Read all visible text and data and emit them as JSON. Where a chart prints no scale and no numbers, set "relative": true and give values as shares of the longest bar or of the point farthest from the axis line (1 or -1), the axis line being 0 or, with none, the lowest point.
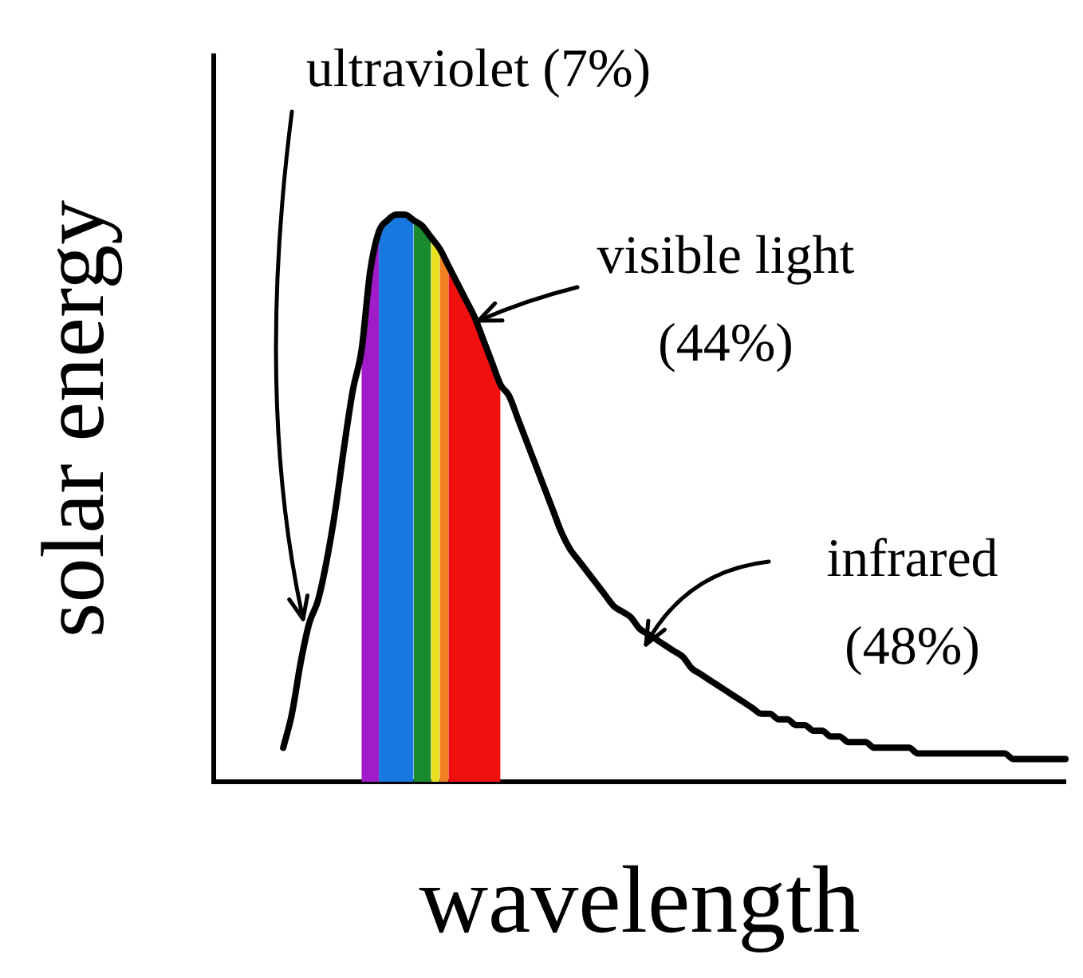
{
  "chart_data": {
    "type": "line",
    "relative": true,
    "xlabel": "wavelength",
    "ylabel": "solar energy",
    "marker": "none",
    "annotations": [
      "ultraviolet (7%)",
      "visible light (44%)",
      "infrared (48%)"
    ],
    "categories": [
      null,
      null,
      null,
      null,
      null,
      null,
      null,
      null,
      null,
      null,
      null,
      null,
      null,
      null,
      null,
      null,
      null,
      null,
      null,
      null,
      null,
      null,
      null,
      null,
      null,
      null,
      null,
      null,
      null,
      null,
      null,
      null,
      null,
      null,
      null,
      null,
      null,
      null,
      null,
      null,
      null,
      null,
      null,
      null,
      null,
      null,
      null,
      null,
      null,
      null,
      null,
      null,
      null,
      null,
      null,
      null,
      null,
      null,
      null,
      null,
      null,
      null,
      null,
      null,
      null,
      null,
      null,
      null,
      null,
      null,
      null,
      null,
      null,
      null,
      null,
      null,
      null,
      null,
      null,
      null,
      null,
      null,
      null,
      null,
      null,
      null,
      null,
      null,
      null,
      null,
      null,
      null,
      null,
      null,
      null,
      null,
      null,
      null,
      null
    ],
    "series": [
      {
        "type": "line",
        "color": "#000000",
        "values": [
          null,
          null,
          null,
          null,
          null,
          null,
          null,
          null,
          0.06,
          0.12,
          0.21,
          0.28,
          0.32,
          0.39,
          0.48,
          0.59,
          0.69,
          0.76,
          0.9,
          0.97,
          0.99,
          1,
          1,
          0.99,
          0.98,
          0.96,
          0.94,
          0.91,
          0.88,
          0.85,
          0.82,
          0.78,
          0.74,
          0.7,
          0.68,
          0.64,
          0.6,
          0.56,
          0.52,
          0.48,
          0.44,
          0.41,
          0.39,
          0.37,
          0.35,
          0.33,
          0.31,
          0.3,
          0.29,
          0.27,
          0.26,
          0.25,
          0.24,
          0.23,
          0.22,
          0.2,
          0.19,
          0.18,
          0.17,
          0.16,
          0.15,
          0.14,
          0.13,
          0.12,
          0.12,
          0.11,
          0.11,
          0.1,
          0.1,
          0.09,
          0.09,
          0.08,
          0.08,
          0.07,
          0.07,
          0.07,
          0.06,
          0.06,
          0.06,
          0.06,
          0.06,
          0.05,
          0.05,
          0.05,
          0.05,
          0.05,
          0.05,
          0.05,
          0.05,
          0.05,
          0.05,
          0.05,
          0.04,
          0.04,
          0.04,
          0.04,
          0.04,
          0.04,
          0.04
        ]
      },
      {
        "type": "area",
        "color": "#a01cc8",
        "values": [
          null,
          null,
          null,
          null,
          null,
          null,
          null,
          null,
          null,
          null,
          null,
          null,
          null,
          null,
          null,
          null,
          null,
          0.76,
          0.9,
          0.97,
          null,
          null,
          null,
          null,
          null,
          null,
          null,
          null,
          null,
          null,
          null,
          null,
          null,
          null,
          null,
          null,
          null,
          null,
          null,
          null,
          null,
          null,
          null,
          null,
          null,
          null,
          null,
          null,
          null,
          null,
          null,
          null,
          null,
          null,
          null,
          null,
          null,
          null,
          null,
          null,
          null,
          null,
          null,
          null,
          null,
          null,
          null,
          null,
          null,
          null,
          null,
          null,
          null,
          null,
          null,
          null,
          null,
          null,
          null,
          null,
          null,
          null,
          null,
          null,
          null,
          null,
          null,
          null,
          null,
          null,
          null,
          null,
          null,
          null,
          null,
          null,
          null,
          null,
          null
        ]
      },
      {
        "type": "area",
        "color": "#1878e0",
        "values": [
          null,
          null,
          null,
          null,
          null,
          null,
          null,
          null,
          null,
          null,
          null,
          null,
          null,
          null,
          null,
          null,
          null,
          null,
          null,
          0.97,
          0.99,
          1,
          1,
          0.99,
          null,
          null,
          null,
          null,
          null,
          null,
          null,
          null,
          null,
          null,
          null,
          null,
          null,
          null,
          null,
          null,
          null,
          null,
          null,
          null,
          null,
          null,
          null,
          null,
          null,
          null,
          null,
          null,
          null,
          null,
          null,
          null,
          null,
          null,
          null,
          null,
          null,
          null,
          null,
          null,
          null,
          null,
          null,
          null,
          null,
          null,
          null,
          null,
          null,
          null,
          null,
          null,
          null,
          null,
          null,
          null,
          null,
          null,
          null,
          null,
          null,
          null,
          null,
          null,
          null,
          null,
          null,
          null,
          null,
          null,
          null,
          null,
          null,
          null,
          null
        ]
      },
      {
        "type": "area",
        "color": "#1a8a2e",
        "values": [
          null,
          null,
          null,
          null,
          null,
          null,
          null,
          null,
          null,
          null,
          null,
          null,
          null,
          null,
          null,
          null,
          null,
          null,
          null,
          null,
          null,
          null,
          null,
          0.99,
          0.98,
          0.96,
          null,
          null,
          null,
          null,
          null,
          null,
          null,
          null,
          null,
          null,
          null,
          null,
          null,
          null,
          null,
          null,
          null,
          null,
          null,
          null,
          null,
          null,
          null,
          null,
          null,
          null,
          null,
          null,
          null,
          null,
          null,
          null,
          null,
          null,
          null,
          null,
          null,
          null,
          null,
          null,
          null,
          null,
          null,
          null,
          null,
          null,
          null,
          null,
          null,
          null,
          null,
          null,
          null,
          null,
          null,
          null,
          null,
          null,
          null,
          null,
          null,
          null,
          null,
          null,
          null,
          null,
          null,
          null,
          null,
          null,
          null,
          null,
          null
        ]
      },
      {
        "type": "area",
        "color": "#e8e020",
        "values": [
          null,
          null,
          null,
          null,
          null,
          null,
          null,
          null,
          null,
          null,
          null,
          null,
          null,
          null,
          null,
          null,
          null,
          null,
          null,
          null,
          null,
          null,
          null,
          null,
          null,
          0.96,
          0.94,
          null,
          null,
          null,
          null,
          null,
          null,
          null,
          null,
          null,
          null,
          null,
          null,
          null,
          null,
          null,
          null,
          null,
          null,
          null,
          null,
          null,
          null,
          null,
          null,
          null,
          null,
          null,
          null,
          null,
          null,
          null,
          null,
          null,
          null,
          null,
          null,
          null,
          null,
          null,
          null,
          null,
          null,
          null,
          null,
          null,
          null,
          null,
          null,
          null,
          null,
          null,
          null,
          null,
          null,
          null,
          null,
          null,
          null,
          null,
          null,
          null,
          null,
          null,
          null,
          null,
          null,
          null,
          null,
          null,
          null,
          null,
          null
        ]
      },
      {
        "type": "area",
        "color": "#f08020",
        "values": [
          null,
          null,
          null,
          null,
          null,
          null,
          null,
          null,
          null,
          null,
          null,
          null,
          null,
          null,
          null,
          null,
          null,
          null,
          null,
          null,
          null,
          null,
          null,
          null,
          null,
          null,
          0.94,
          0.91,
          null,
          null,
          null,
          null,
          null,
          null,
          null,
          null,
          null,
          null,
          null,
          null,
          null,
          null,
          null,
          null,
          null,
          null,
          null,
          null,
          null,
          null,
          null,
          null,
          null,
          null,
          null,
          null,
          null,
          null,
          null,
          null,
          null,
          null,
          null,
          null,
          null,
          null,
          null,
          null,
          null,
          null,
          null,
          null,
          null,
          null,
          null,
          null,
          null,
          null,
          null,
          null,
          null,
          null,
          null,
          null,
          null,
          null,
          null,
          null,
          null,
          null,
          null,
          null,
          null,
          null,
          null,
          null,
          null,
          null,
          null
        ]
      },
      {
        "type": "area",
        "color": "#f01010",
        "values": [
          null,
          null,
          null,
          null,
          null,
          null,
          null,
          null,
          null,
          null,
          null,
          null,
          null,
          null,
          null,
          null,
          null,
          null,
          null,
          null,
          null,
          null,
          null,
          null,
          null,
          null,
          null,
          0.91,
          0.88,
          0.85,
          0.82,
          0.78,
          0.74,
          0.7,
          null,
          null,
          null,
          null,
          null,
          null,
          null,
          null,
          null,
          null,
          null,
          null,
          null,
          null,
          null,
          null,
          null,
          null,
          null,
          null,
          null,
          null,
          null,
          null,
          null,
          null,
          null,
          null,
          null,
          null,
          null,
          null,
          null,
          null,
          null,
          null,
          null,
          null,
          null,
          null,
          null,
          null,
          null,
          null,
          null,
          null,
          null,
          null,
          null,
          null,
          null,
          null,
          null,
          null,
          null,
          null,
          null,
          null,
          null,
          null,
          null,
          null,
          null,
          null,
          null
        ]
      }
    ]
  }
}
